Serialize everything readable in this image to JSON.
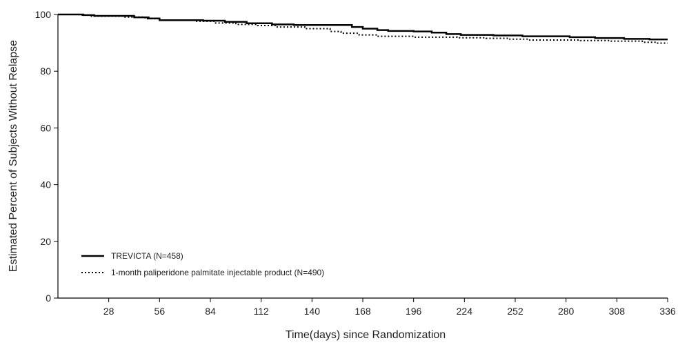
{
  "chart_data": {
    "type": "line",
    "title": "",
    "xlabel": "Time(days) since Randomization",
    "ylabel": "Estimated Percent of Subjects Without Relapse",
    "xlim": [
      0,
      336
    ],
    "ylim": [
      0,
      100
    ],
    "x_ticks": [
      28,
      56,
      84,
      112,
      140,
      168,
      196,
      224,
      252,
      280,
      308,
      336
    ],
    "y_ticks": [
      0,
      20,
      40,
      60,
      80,
      100
    ],
    "grid": false,
    "legend_position": "bottom-left",
    "series": [
      {
        "name": "TREVICTA (N=458)",
        "line_style": "solid",
        "color": "#000000",
        "step": true,
        "points": [
          [
            0,
            100
          ],
          [
            14,
            99.8
          ],
          [
            20,
            99.5
          ],
          [
            42,
            99.0
          ],
          [
            50,
            98.6
          ],
          [
            56,
            98.0
          ],
          [
            80,
            97.8
          ],
          [
            92,
            97.4
          ],
          [
            104,
            96.9
          ],
          [
            118,
            96.5
          ],
          [
            130,
            96.3
          ],
          [
            162,
            95.6
          ],
          [
            168,
            95.0
          ],
          [
            176,
            94.5
          ],
          [
            182,
            94.2
          ],
          [
            196,
            94.0
          ],
          [
            206,
            93.6
          ],
          [
            214,
            93.1
          ],
          [
            222,
            92.8
          ],
          [
            240,
            92.6
          ],
          [
            256,
            92.3
          ],
          [
            282,
            92.0
          ],
          [
            296,
            91.7
          ],
          [
            312,
            91.4
          ],
          [
            326,
            91.2
          ],
          [
            336,
            91.2
          ]
        ]
      },
      {
        "name": "1-month paliperidone palmitate injectable product (N=490)",
        "line_style": "dotted",
        "color": "#000000",
        "step": true,
        "points": [
          [
            0,
            100
          ],
          [
            12,
            99.8
          ],
          [
            18,
            99.4
          ],
          [
            36,
            99.1
          ],
          [
            48,
            98.5
          ],
          [
            56,
            98.0
          ],
          [
            76,
            97.6
          ],
          [
            86,
            97.0
          ],
          [
            98,
            96.5
          ],
          [
            110,
            96.1
          ],
          [
            120,
            95.6
          ],
          [
            136,
            95.0
          ],
          [
            150,
            94.0
          ],
          [
            156,
            93.4
          ],
          [
            166,
            92.8
          ],
          [
            176,
            92.3
          ],
          [
            196,
            92.0
          ],
          [
            220,
            91.8
          ],
          [
            236,
            91.6
          ],
          [
            248,
            91.3
          ],
          [
            260,
            91.0
          ],
          [
            288,
            90.8
          ],
          [
            304,
            90.6
          ],
          [
            322,
            90.2
          ],
          [
            330,
            89.9
          ],
          [
            336,
            89.9
          ]
        ]
      }
    ]
  }
}
